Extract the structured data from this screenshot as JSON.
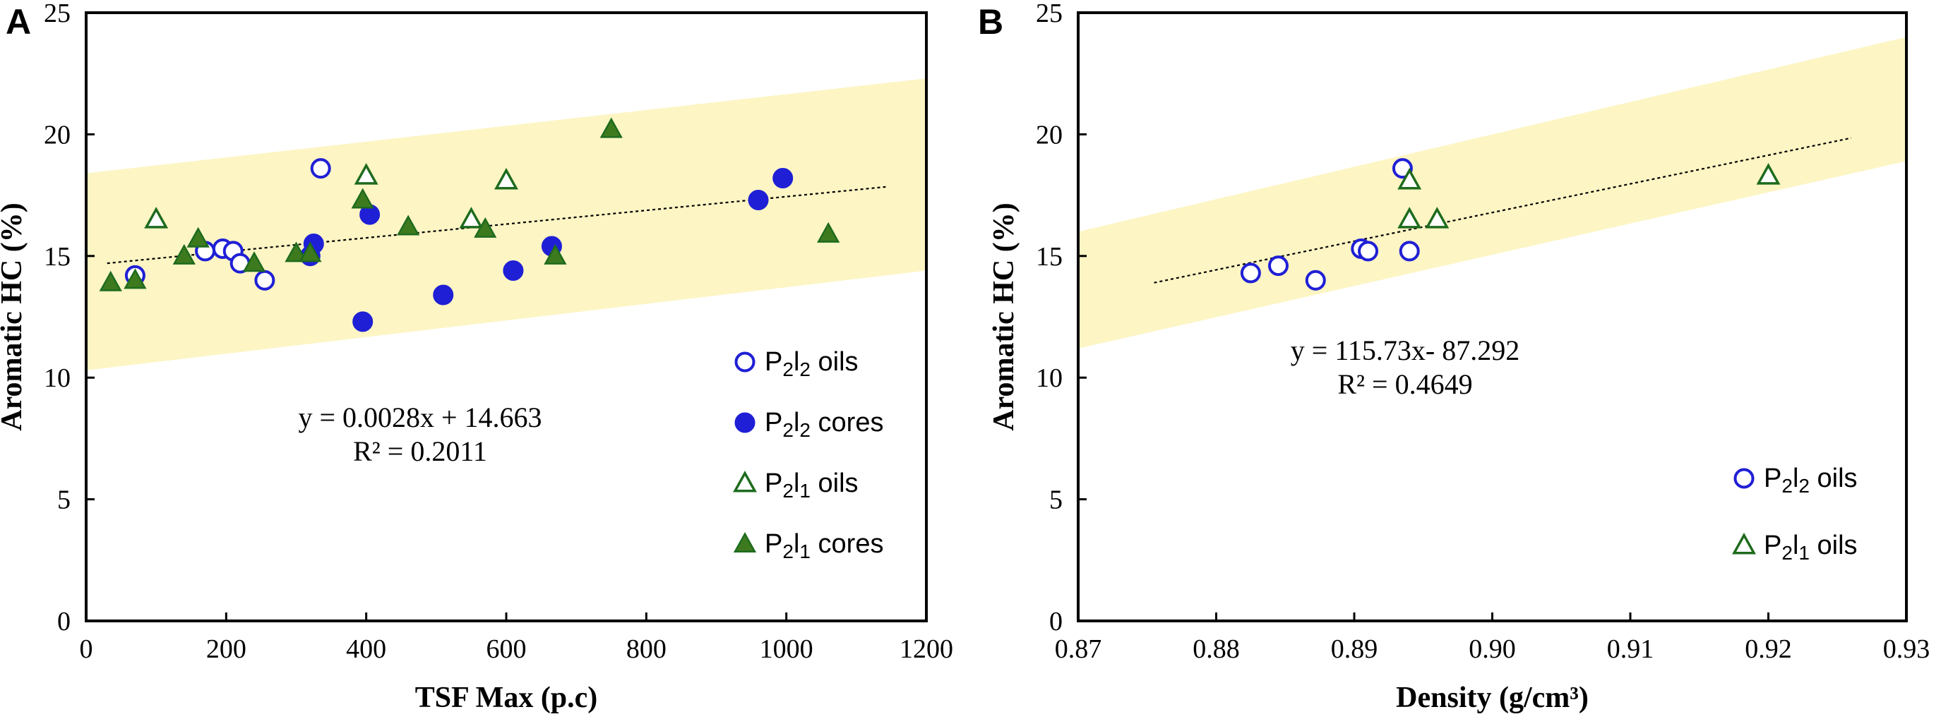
{
  "chart_data": [
    {
      "panel_label": "A",
      "type": "scatter",
      "xlabel": "TSF Max (p.c)",
      "ylabel": "Aromatic HC (%)",
      "xlim": [
        0,
        1200
      ],
      "ylim": [
        0,
        25
      ],
      "xticks": [
        "0",
        "200",
        "400",
        "600",
        "800",
        "1000",
        "1200"
      ],
      "yticks": [
        "0",
        "5",
        "10",
        "15",
        "20",
        "25"
      ],
      "equation": "y = 0.0028x + 14.663",
      "r_squared": "R² = 0.2011",
      "band": {
        "left": [
          0,
          10.3,
          18.4
        ],
        "right": [
          1200,
          14.4,
          22.3
        ],
        "color": "#fdf5c4"
      },
      "trendline": {
        "x0": 30,
        "y0": 14.7,
        "x1": 1145,
        "y1": 17.85
      },
      "series": [
        {
          "name": "P2l2 oils",
          "base": "P",
          "sub1": "2",
          "mid": "l",
          "sub2": "2",
          "suffix": " oils",
          "marker": "circle-open",
          "color": "#1f1fd6",
          "points": [
            [
              70,
              14.2
            ],
            [
              170,
              15.2
            ],
            [
              195,
              15.3
            ],
            [
              210,
              15.2
            ],
            [
              220,
              14.7
            ],
            [
              255,
              14.0
            ],
            [
              335,
              18.6
            ]
          ]
        },
        {
          "name": "P2l2 cores",
          "base": "P",
          "sub1": "2",
          "mid": "l",
          "sub2": "2",
          "suffix": " cores",
          "marker": "circle-filled",
          "color": "#1f1fd6",
          "points": [
            [
              320,
              15.0
            ],
            [
              325,
              15.5
            ],
            [
              395,
              12.3
            ],
            [
              405,
              16.7
            ],
            [
              510,
              13.4
            ],
            [
              610,
              14.4
            ],
            [
              665,
              15.4
            ],
            [
              960,
              17.3
            ],
            [
              995,
              18.2
            ]
          ]
        },
        {
          "name": "P2l1 oils",
          "base": "P",
          "sub1": "2",
          "mid": "l",
          "sub2": "1",
          "suffix": " oils",
          "marker": "triangle-open",
          "color": "#1e6b1e",
          "points": [
            [
              100,
              16.5
            ],
            [
              400,
              18.3
            ],
            [
              550,
              16.5
            ],
            [
              600,
              18.1
            ]
          ]
        },
        {
          "name": "P2l1 cores",
          "base": "P",
          "sub1": "2",
          "mid": "l",
          "sub2": "1",
          "suffix": " cores",
          "marker": "triangle-filled",
          "color": "#1e6b1e",
          "fill": "#3d7a1e",
          "points": [
            [
              35,
              13.9
            ],
            [
              70,
              14.0
            ],
            [
              140,
              15.0
            ],
            [
              160,
              15.7
            ],
            [
              240,
              14.7
            ],
            [
              300,
              15.1
            ],
            [
              320,
              15.1
            ],
            [
              395,
              17.3
            ],
            [
              460,
              16.2
            ],
            [
              570,
              16.1
            ],
            [
              670,
              15.0
            ],
            [
              750,
              20.2
            ],
            [
              1060,
              15.9
            ]
          ]
        }
      ]
    },
    {
      "panel_label": "B",
      "type": "scatter",
      "xlabel": "Density (g/cm³)",
      "ylabel": "Aromatic HC (%)",
      "xlim": [
        0.87,
        0.93
      ],
      "ylim": [
        0,
        25
      ],
      "xticks": [
        "0.87",
        "0.88",
        "0.89",
        "0.90",
        "0.91",
        "0.92",
        "0.93"
      ],
      "yticks": [
        "0",
        "5",
        "10",
        "15",
        "20",
        "25"
      ],
      "equation": "y = 115.73x- 87.292",
      "r_squared": "R² = 0.4649",
      "band": {
        "left": [
          0.87,
          11.2,
          16.0
        ],
        "right": [
          0.93,
          18.9,
          24.0
        ],
        "color": "#fdf5c4"
      },
      "trendline": {
        "x0": 0.8755,
        "y0": 13.9,
        "x1": 0.926,
        "y1": 19.85
      },
      "series": [
        {
          "name": "P2l2 oils",
          "base": "P",
          "sub1": "2",
          "mid": "l",
          "sub2": "2",
          "suffix": " oils",
          "marker": "circle-open",
          "color": "#1f1fd6",
          "points": [
            [
              0.8825,
              14.3
            ],
            [
              0.8845,
              14.6
            ],
            [
              0.8872,
              14.0
            ],
            [
              0.8905,
              15.3
            ],
            [
              0.891,
              15.2
            ],
            [
              0.8935,
              18.6
            ],
            [
              0.894,
              15.2
            ]
          ]
        },
        {
          "name": "P2l1 oils",
          "base": "P",
          "sub1": "2",
          "mid": "l",
          "sub2": "1",
          "suffix": " oils",
          "marker": "triangle-open",
          "color": "#1e6b1e",
          "points": [
            [
              0.894,
              18.1
            ],
            [
              0.894,
              16.5
            ],
            [
              0.896,
              16.5
            ],
            [
              0.92,
              18.3
            ]
          ]
        }
      ]
    }
  ]
}
